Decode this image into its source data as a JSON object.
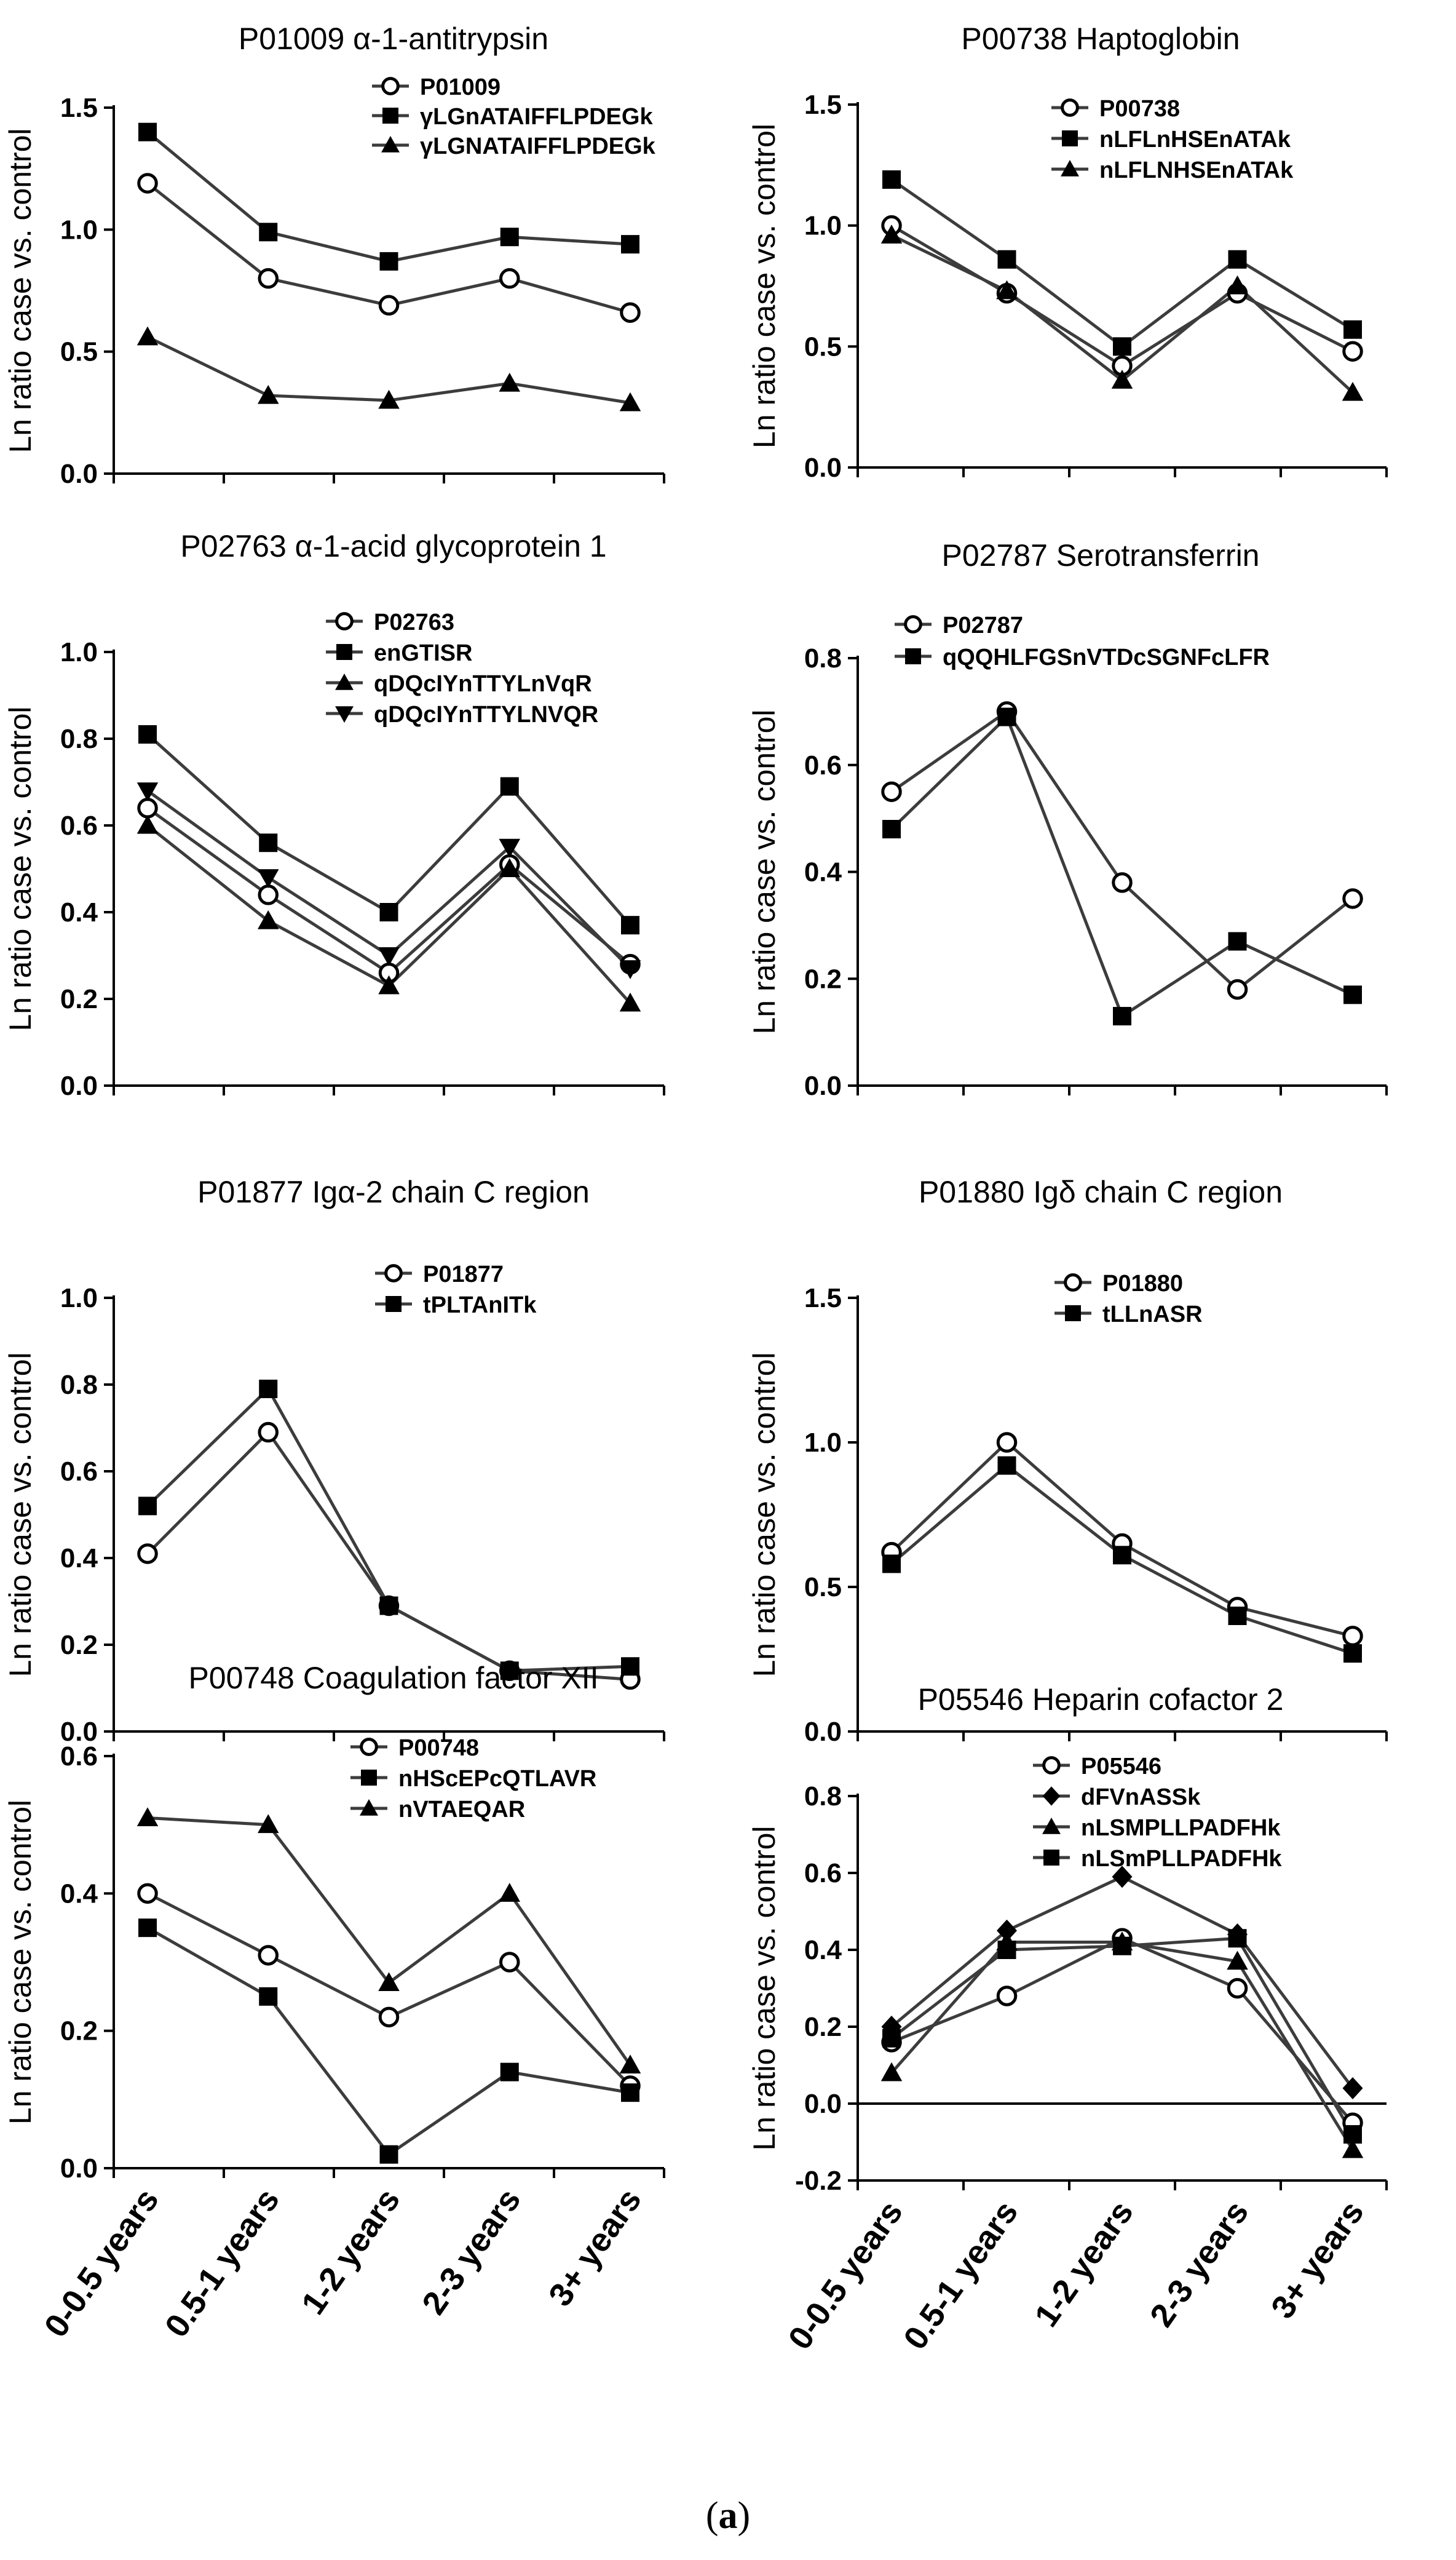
{
  "figure": {
    "caption_open": "(",
    "caption_letter": "a",
    "caption_close": ")",
    "line_color": "#3c3c3c",
    "marker_color": "#000000",
    "text_color": "#000000"
  },
  "chart_data": [
    {
      "type": "line",
      "title": "P01009 α-1-antitrypsin",
      "ylabel": "Ln ratio case vs. control",
      "xlabel": "",
      "categories": [
        "0-0.5 years",
        "0.5-1 years",
        "1-2 years",
        "2-3 years",
        "3+ years"
      ],
      "ylim": [
        0.0,
        1.5
      ],
      "yticks": [
        0.0,
        0.5,
        1.0,
        1.5
      ],
      "ytick_labels": [
        "0.0",
        "0.5",
        "1.0",
        "1.5"
      ],
      "zero_line": false,
      "legend_position": "top-right",
      "series": [
        {
          "name": "P01009",
          "marker": "circle",
          "values": [
            1.19,
            0.8,
            0.69,
            0.8,
            0.66
          ]
        },
        {
          "name": "γLGnATAIFFLPDEGk",
          "marker": "square",
          "values": [
            1.4,
            0.99,
            0.87,
            0.97,
            0.94
          ]
        },
        {
          "name": "γLGNATAIFFLPDEGk",
          "marker": "triangle",
          "values": [
            0.56,
            0.32,
            0.3,
            0.37,
            0.29
          ]
        }
      ]
    },
    {
      "type": "line",
      "title": "P00738 Haptoglobin",
      "ylabel": "Ln ratio case vs. control",
      "xlabel": "",
      "categories": [
        "0-0.5 years",
        "0.5-1 years",
        "1-2 years",
        "2-3 years",
        "3+ years"
      ],
      "ylim": [
        0.0,
        1.5
      ],
      "yticks": [
        0.0,
        0.5,
        1.0,
        1.5
      ],
      "ytick_labels": [
        "0.0",
        "0.5",
        "1.0",
        "1.5"
      ],
      "zero_line": false,
      "legend_position": "top-right",
      "series": [
        {
          "name": "P00738",
          "marker": "circle",
          "values": [
            1.0,
            0.72,
            0.42,
            0.72,
            0.48
          ]
        },
        {
          "name": "nLFLnHSEnATAk",
          "marker": "square",
          "values": [
            1.19,
            0.86,
            0.5,
            0.86,
            0.57
          ]
        },
        {
          "name": "nLFLNHSEnATAk",
          "marker": "triangle",
          "values": [
            0.96,
            0.73,
            0.36,
            0.75,
            0.31
          ]
        }
      ]
    },
    {
      "type": "line",
      "title": "P02763 α-1-acid glycoprotein 1",
      "ylabel": "Ln ratio case vs. control",
      "xlabel": "",
      "categories": [
        "0-0.5 years",
        "0.5-1 years",
        "1-2 years",
        "2-3 years",
        "3+ years"
      ],
      "ylim": [
        0.0,
        1.0
      ],
      "yticks": [
        0.0,
        0.2,
        0.4,
        0.6,
        0.8,
        1.0
      ],
      "ytick_labels": [
        "0.0",
        "0.2",
        "0.4",
        "0.6",
        "0.8",
        "1.0"
      ],
      "zero_line": false,
      "legend_position": "top-right",
      "series": [
        {
          "name": "P02763",
          "marker": "circle",
          "values": [
            0.64,
            0.44,
            0.26,
            0.51,
            0.28
          ]
        },
        {
          "name": "enGTISR",
          "marker": "square",
          "values": [
            0.81,
            0.56,
            0.4,
            0.69,
            0.37
          ]
        },
        {
          "name": "qDQcIYnTTYLnVqR",
          "marker": "triangle",
          "values": [
            0.6,
            0.38,
            0.23,
            0.5,
            0.19
          ]
        },
        {
          "name": "qDQcIYnTTYLNVQR",
          "marker": "triangle-down",
          "values": [
            0.68,
            0.48,
            0.3,
            0.55,
            0.27
          ]
        }
      ]
    },
    {
      "type": "line",
      "title": "P02787 Serotransferrin",
      "ylabel": "Ln ratio case vs. control",
      "xlabel": "",
      "categories": [
        "0-0.5 years",
        "0.5-1 years",
        "1-2 years",
        "2-3 years",
        "3+ years"
      ],
      "ylim": [
        0.0,
        0.8
      ],
      "yticks": [
        0.0,
        0.2,
        0.4,
        0.6,
        0.8
      ],
      "ytick_labels": [
        "0.0",
        "0.2",
        "0.4",
        "0.6",
        "0.8"
      ],
      "zero_line": false,
      "legend_position": "top-right",
      "series": [
        {
          "name": "P02787",
          "marker": "circle",
          "values": [
            0.55,
            0.7,
            0.38,
            0.18,
            0.35
          ]
        },
        {
          "name": "qQQHLFGSnVTDcSGNFcLFR",
          "marker": "square",
          "values": [
            0.48,
            0.69,
            0.13,
            0.27,
            0.17
          ]
        }
      ]
    },
    {
      "type": "line",
      "title": "P01877 Igα-2 chain C region",
      "ylabel": "Ln ratio case vs. control",
      "xlabel": "",
      "categories": [
        "0-0.5 years",
        "0.5-1 years",
        "1-2 years",
        "2-3 years",
        "3+ years"
      ],
      "ylim": [
        0.0,
        1.0
      ],
      "yticks": [
        0.0,
        0.2,
        0.4,
        0.6,
        0.8,
        1.0
      ],
      "ytick_labels": [
        "0.0",
        "0.2",
        "0.4",
        "0.6",
        "0.8",
        "1.0"
      ],
      "zero_line": false,
      "legend_position": "top-right",
      "series": [
        {
          "name": "P01877",
          "marker": "circle",
          "values": [
            0.41,
            0.69,
            0.29,
            0.14,
            0.12
          ]
        },
        {
          "name": "tPLTAnITk",
          "marker": "square",
          "values": [
            0.52,
            0.79,
            0.29,
            0.14,
            0.15
          ]
        }
      ]
    },
    {
      "type": "line",
      "title": "P01880 Igδ chain C region",
      "ylabel": "Ln ratio case vs. control",
      "xlabel": "",
      "categories": [
        "0-0.5 years",
        "0.5-1 years",
        "1-2 years",
        "2-3 years",
        "3+ years"
      ],
      "ylim": [
        0.0,
        1.5
      ],
      "yticks": [
        0.0,
        0.5,
        1.0,
        1.5
      ],
      "ytick_labels": [
        "0.0",
        "0.5",
        "1.0",
        "1.5"
      ],
      "zero_line": false,
      "legend_position": "top-right",
      "series": [
        {
          "name": "P01880",
          "marker": "circle",
          "values": [
            0.62,
            1.0,
            0.65,
            0.43,
            0.33
          ]
        },
        {
          "name": "tLLnASR",
          "marker": "square",
          "values": [
            0.58,
            0.92,
            0.61,
            0.4,
            0.27
          ]
        }
      ]
    },
    {
      "type": "line",
      "title": "P00748 Coagulation factor XII",
      "ylabel": "Ln ratio case vs. control",
      "xlabel": "",
      "categories": [
        "0-0.5 years",
        "0.5-1 years",
        "1-2 years",
        "2-3 years",
        "3+ years"
      ],
      "ylim": [
        0.0,
        0.6
      ],
      "yticks": [
        0.0,
        0.2,
        0.4,
        0.6
      ],
      "ytick_labels": [
        "0.0",
        "0.2",
        "0.4",
        "0.6"
      ],
      "zero_line": false,
      "legend_position": "top-right",
      "show_xticklabels": true,
      "series": [
        {
          "name": "P00748",
          "marker": "circle",
          "values": [
            0.4,
            0.31,
            0.22,
            0.3,
            0.12
          ]
        },
        {
          "name": "nHScEPcQTLAVR",
          "marker": "square",
          "values": [
            0.35,
            0.25,
            0.02,
            0.14,
            0.11
          ]
        },
        {
          "name": "nVTAEQAR",
          "marker": "triangle",
          "values": [
            0.51,
            0.5,
            0.27,
            0.4,
            0.15
          ]
        }
      ]
    },
    {
      "type": "line",
      "title": "P05546 Heparin cofactor 2",
      "ylabel": "Ln ratio case vs. control",
      "xlabel": "",
      "categories": [
        "0-0.5 years",
        "0.5-1 years",
        "1-2 years",
        "2-3 years",
        "3+ years"
      ],
      "ylim": [
        -0.2,
        0.8
      ],
      "yticks": [
        -0.2,
        0.0,
        0.2,
        0.4,
        0.6,
        0.8
      ],
      "ytick_labels": [
        "-0.2",
        "0.0",
        "0.2",
        "0.4",
        "0.6",
        "0.8"
      ],
      "zero_line": true,
      "legend_position": "top-right",
      "show_xticklabels": true,
      "series": [
        {
          "name": "P05546",
          "marker": "circle",
          "values": [
            0.16,
            0.28,
            0.43,
            0.3,
            -0.05
          ]
        },
        {
          "name": "dFVnASSk",
          "marker": "diamond",
          "values": [
            0.2,
            0.45,
            0.59,
            0.44,
            0.04
          ]
        },
        {
          "name": "nLSMPLLPADFHk",
          "marker": "triangle",
          "values": [
            0.08,
            0.42,
            0.42,
            0.37,
            -0.12
          ]
        },
        {
          "name": "nLSmPLLPADFHk",
          "marker": "square",
          "values": [
            0.17,
            0.4,
            0.41,
            0.43,
            -0.08
          ]
        }
      ]
    }
  ]
}
